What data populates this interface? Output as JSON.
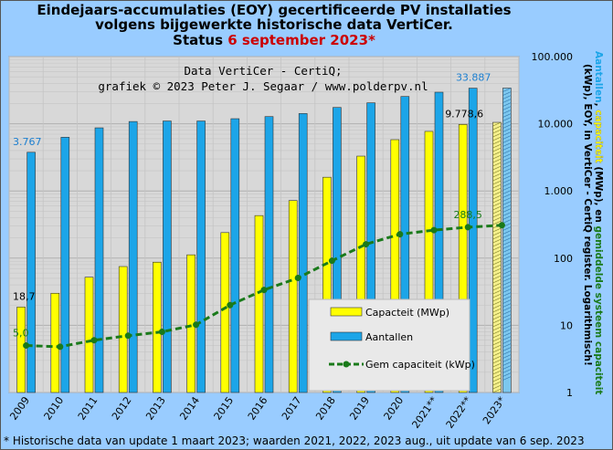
{
  "title_lines": [
    "Eindejaars-accumulaties (EOY) gecertificeerde PV installaties",
    "volgens bijgewerkte historische data VertiCer."
  ],
  "status_prefix": "Status",
  "status_date": "6 september 2023*",
  "footnote": "* Historische data van update 1 maart 2023; waarden 2021, 2022, 2023 aug., uit update van 6 sep. 2023",
  "chart_data": {
    "type": "bar",
    "credit_lines": [
      "Data VertiCer - CertiQ;",
      "grafiek © 2023 Peter J. Segaar / www.polderpv.nl"
    ],
    "categories": [
      "2009",
      "2010",
      "2011",
      "2012",
      "2013",
      "2014",
      "2015",
      "2016",
      "2017",
      "2018",
      "2019",
      "2020",
      "2021**",
      "2022**",
      "2023*"
    ],
    "yscale": "log",
    "ylim": [
      1,
      100000
    ],
    "ytick_labels": [
      "1",
      "10",
      "100",
      "1.000",
      "10.000",
      "100.000"
    ],
    "ytick_values": [
      1,
      10,
      100,
      1000,
      10000,
      100000
    ],
    "grid": true,
    "legend_position": "bottom-right",
    "series": [
      {
        "name": "Capacteit (MWp)",
        "type": "bar",
        "color": "#ffff00",
        "values": [
          18.7,
          30,
          52,
          75,
          87,
          112,
          240,
          430,
          720,
          1600,
          3300,
          5800,
          7700,
          9778.6,
          10500
        ]
      },
      {
        "name": "Aantallen",
        "type": "bar",
        "color": "#1ca5e8",
        "values": [
          3767,
          6300,
          8700,
          10800,
          11000,
          11000,
          11900,
          12800,
          14200,
          17500,
          20500,
          25500,
          29500,
          33887,
          34000
        ]
      },
      {
        "name": "Gem capaciteit (kWp)",
        "type": "line",
        "color": "#1a7a1a",
        "values": [
          5.0,
          4.8,
          6.0,
          7.0,
          8.0,
          10.2,
          20.0,
          33.6,
          50.7,
          91.4,
          161,
          227,
          261,
          288.5,
          309
        ]
      }
    ],
    "data_labels": [
      {
        "series": "Aantallen",
        "category": "2009",
        "text": "3.767"
      },
      {
        "series": "Aantallen",
        "category": "2022**",
        "text": "33.887"
      },
      {
        "series": "Capacteit (MWp)",
        "category": "2009",
        "text": "18,7"
      },
      {
        "series": "Capacteit (MWp)",
        "category": "2022**",
        "text": "9.778,6"
      },
      {
        "series": "Gem capaciteit (kWp)",
        "category": "2009",
        "text": "5,0"
      },
      {
        "series": "Gem capaciteit (kWp)",
        "category": "2022**",
        "text": "288,5"
      }
    ],
    "right_axis_title_segments": [
      {
        "text": "Aantallen",
        "color": "#1ca5e8"
      },
      {
        "text": ", ",
        "color": "#000000"
      },
      {
        "text": "capaciteit",
        "color": "#ffff00"
      },
      {
        "text": " (MWp), en ",
        "color": "#000000"
      },
      {
        "text": "gemiddelde systeem capaciteit",
        "color": "#1a7a1a"
      },
      {
        "text": " (kWp), EOY, in VertiCer - CertiQ register. Logarithmisch!",
        "color": "#000000"
      }
    ]
  }
}
